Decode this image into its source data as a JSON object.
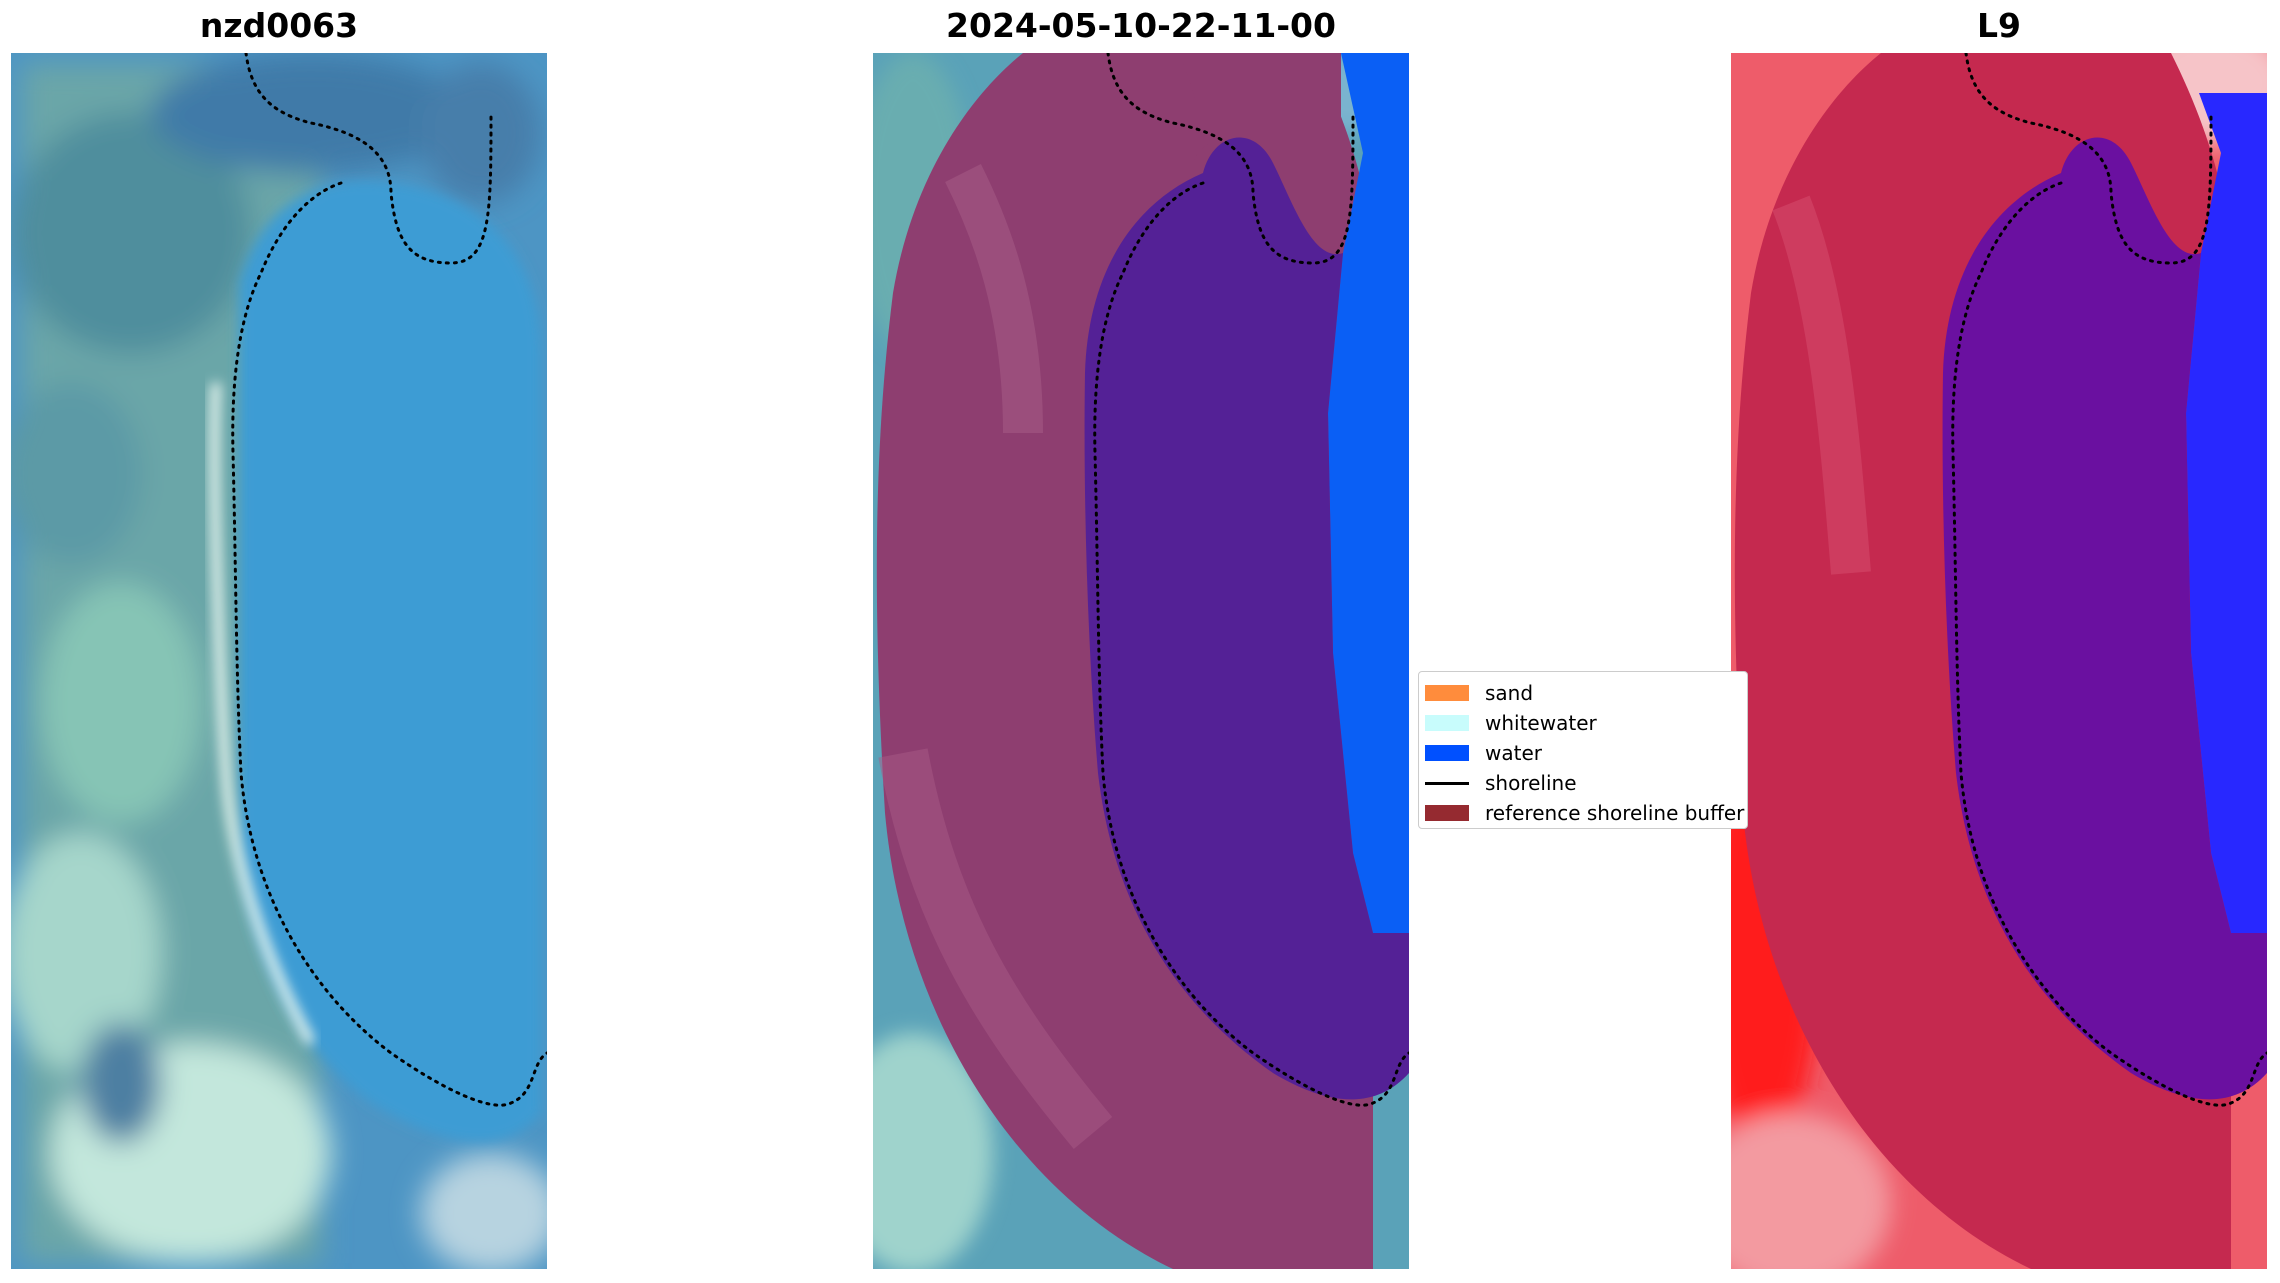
{
  "panels": [
    {
      "title": "nzd0063"
    },
    {
      "title": "2024-05-10-22-11-00"
    },
    {
      "title": "L9"
    }
  ],
  "legend": {
    "items": [
      {
        "label": "sand",
        "color": "#ff8c3c",
        "kind": "patch"
      },
      {
        "label": "whitewater",
        "color": "#c8fcfc",
        "kind": "patch"
      },
      {
        "label": "water",
        "color": "#0050ff",
        "kind": "patch"
      },
      {
        "label": "shoreline",
        "color": "#000000",
        "kind": "line"
      },
      {
        "label": "reference shoreline buffer",
        "color": "#952a30",
        "kind": "patch"
      }
    ]
  },
  "colors": {
    "rgb_water": "#3f99d0",
    "rgb_land": "#5fa3a6",
    "buffer_overlay": "#9b3c68",
    "classified_water": "#542196",
    "classified_sea": "#0a5ff5",
    "index_high": "#c0214e",
    "index_water": "#6a10a0",
    "index_sea": "#2525ff"
  }
}
